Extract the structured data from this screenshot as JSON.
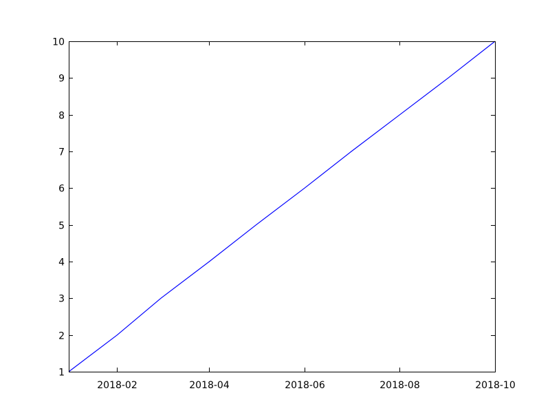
{
  "chart_data": {
    "type": "line",
    "title": "",
    "xlabel": "",
    "ylabel": "",
    "x_axis_type": "date",
    "xlim": [
      "2018-01-01",
      "2018-10-01"
    ],
    "ylim": [
      1,
      10
    ],
    "x_ticks": [
      "2018-02",
      "2018-04",
      "2018-06",
      "2018-08",
      "2018-10"
    ],
    "y_ticks": [
      "1",
      "2",
      "3",
      "4",
      "5",
      "6",
      "7",
      "8",
      "9",
      "10"
    ],
    "grid": false,
    "legend": "none",
    "series": [
      {
        "color": "#0000ff",
        "x": [
          "2018-01-01",
          "2018-02-01",
          "2018-03-01",
          "2018-04-01",
          "2018-05-01",
          "2018-06-01",
          "2018-07-01",
          "2018-08-01",
          "2018-09-01",
          "2018-10-01"
        ],
        "y": [
          1,
          2,
          3,
          4,
          5,
          6,
          7,
          8,
          9,
          10
        ]
      }
    ]
  }
}
